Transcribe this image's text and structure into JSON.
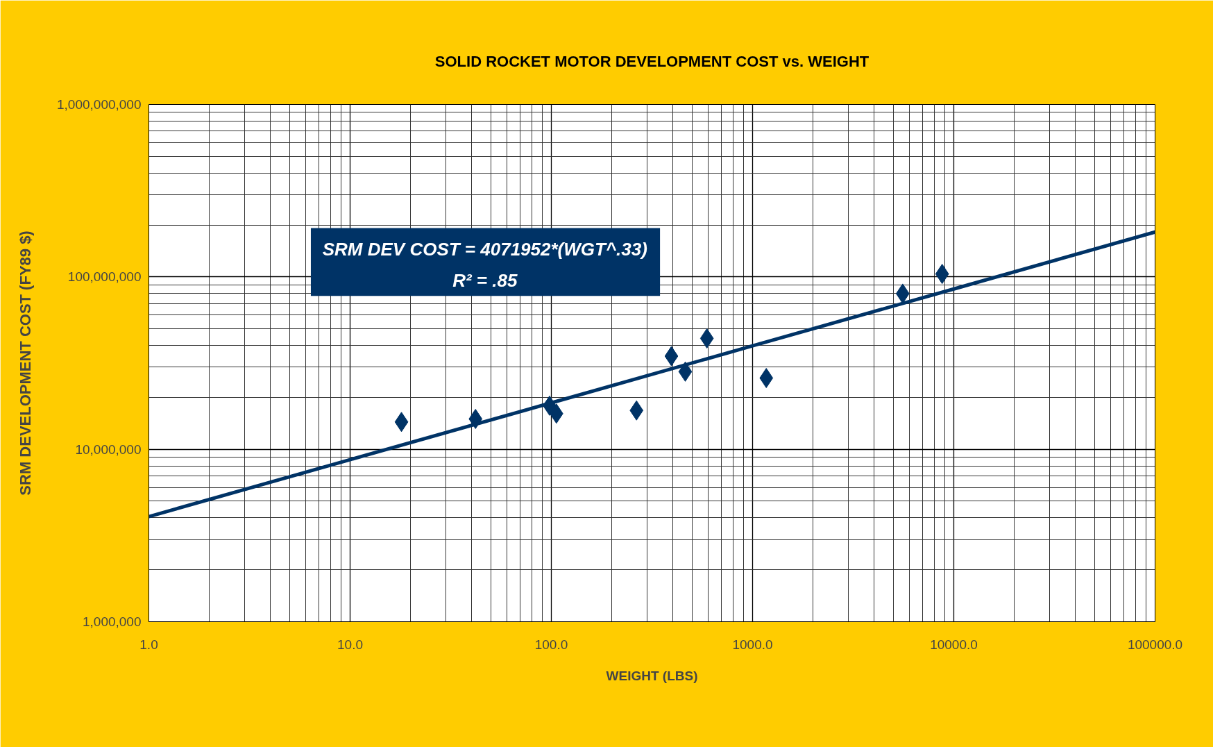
{
  "chart_data": {
    "type": "scatter",
    "title": "SOLID ROCKET MOTOR DEVELOPMENT COST vs. WEIGHT",
    "xlabel": "WEIGHT (LBS)",
    "ylabel": "SRM DEVELOPMENT COST (FY89 $)",
    "annotations": [
      "SRM DEV COST = 4071952*(WGT^.33)",
      "R² = .85"
    ],
    "log": "xy",
    "grid": true,
    "marker": "diamond",
    "xlim": [
      1,
      100000
    ],
    "ylim": [
      1000000,
      1000000000
    ],
    "xticks": [
      {
        "value": 1,
        "label": "1.0"
      },
      {
        "value": 10,
        "label": "10.0"
      },
      {
        "value": 100,
        "label": "100.0"
      },
      {
        "value": 1000,
        "label": "1000.0"
      },
      {
        "value": 10000,
        "label": "10000.0"
      },
      {
        "value": 100000,
        "label": "100000.0"
      }
    ],
    "yticks": [
      {
        "value": 1000000,
        "label": "1,000,000"
      },
      {
        "value": 10000000,
        "label": "10,000,000"
      },
      {
        "value": 100000000,
        "label": "100,000,000"
      },
      {
        "value": 1000000000,
        "label": "1,000,000,000"
      }
    ],
    "series": [
      {
        "color": "#003366",
        "x": [
          18,
          42,
          98,
          106,
          265,
          395,
          463,
          593,
          1170,
          5570,
          8750
        ],
        "values": [
          14400000,
          15000000,
          17900000,
          16100000,
          16800000,
          34700000,
          28200000,
          44000000,
          25900000,
          80000000,
          104000000
        ]
      },
      {
        "type": "line",
        "color": "#003366",
        "marker": "none",
        "x": [
          1,
          10,
          100,
          1000,
          10000,
          100000
        ],
        "values": [
          4070000,
          8710000,
          18600000,
          39800000,
          85100000,
          182000000
        ]
      }
    ]
  }
}
